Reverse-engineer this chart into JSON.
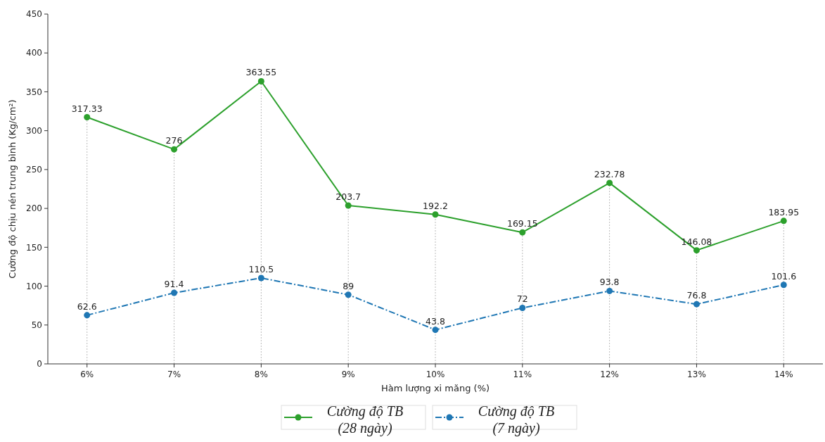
{
  "chart_data": {
    "type": "line",
    "xlabel": "Hàm lượng xi măng (%)",
    "ylabel": "Cường độ chịu nén trung bình (Kg/cm²)",
    "categories": [
      "6%",
      "7%",
      "8%",
      "9%",
      "10%",
      "11%",
      "12%",
      "13%",
      "14%"
    ],
    "series": [
      {
        "name": "Cường độ TB (28 ngày)",
        "color": "#2ca02c",
        "line_style": "solid",
        "values": [
          317.33,
          276,
          363.55,
          203.7,
          192.2,
          169.15,
          232.78,
          146.08,
          183.95
        ]
      },
      {
        "name": "Cường độ TB (7 ngày)",
        "color": "#1f77b4",
        "line_style": "dashed",
        "values": [
          62.6,
          91.4,
          110.5,
          89,
          43.8,
          72,
          93.8,
          76.8,
          101.6
        ]
      }
    ],
    "ylim": [
      0,
      450
    ],
    "yticks": [
      0,
      50,
      100,
      150,
      200,
      250,
      300,
      350,
      400,
      450
    ],
    "grid": "x",
    "legend": "bottom",
    "marker": "circle",
    "data_labels": true
  }
}
